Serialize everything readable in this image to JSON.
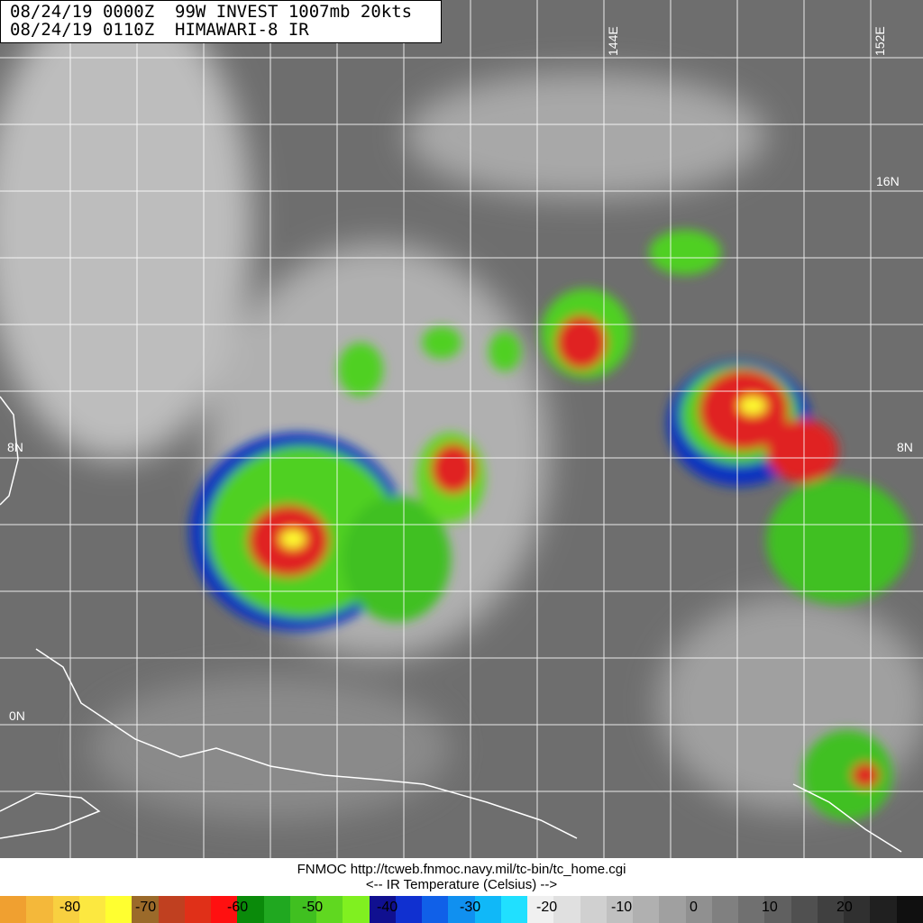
{
  "header": {
    "line1": "08/24/19 0000Z  99W INVEST 1007mb 20kts",
    "line2": "08/24/19 0110Z  HIMAWARI-8 IR"
  },
  "grid_labels": {
    "lon_144": "144E",
    "lon_152": "152E",
    "lat_16_right": "16N",
    "lat_8_left": "8N",
    "lat_8_right": "8N",
    "lat_0": "0N"
  },
  "footer": {
    "source": "FNMOC http://tcweb.fnmoc.navy.mil/tc-bin/tc_home.cgi",
    "legend_title": "<--   IR Temperature (Celsius)   -->"
  },
  "colorbar": {
    "labels": [
      "-80",
      "-70",
      "-60",
      "-50",
      "-40",
      "-30",
      "-20",
      "-10",
      "0",
      "10",
      "20"
    ],
    "colors": [
      "#f0a030",
      "#f4b83a",
      "#f8d040",
      "#fce840",
      "#ffff30",
      "#9b6a2a",
      "#c04020",
      "#e03018",
      "#ff1010",
      "#0a8a0a",
      "#20a820",
      "#40c020",
      "#60d820",
      "#80f020",
      "#101090",
      "#1030d0",
      "#1060e8",
      "#1090f0",
      "#10b8f8",
      "#20e0ff",
      "#f0f0f0",
      "#e0e0e0",
      "#d0d0d0",
      "#c0c0c0",
      "#b0b0b0",
      "#a0a0a0",
      "#909090",
      "#808080",
      "#707070",
      "#606060",
      "#505050",
      "#404040",
      "#303030",
      "#202020",
      "#101010"
    ]
  }
}
